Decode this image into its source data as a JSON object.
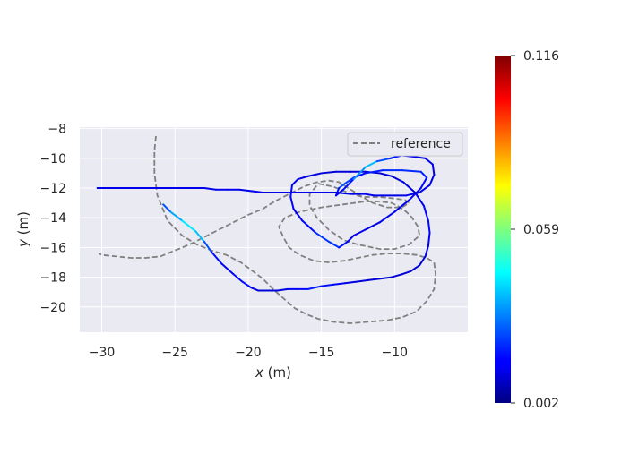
{
  "chart_data": {
    "type": "line",
    "title": "",
    "xlabel": {
      "var": "x",
      "unit": " (m)"
    },
    "ylabel": {
      "var": "y",
      "unit": " (m)"
    },
    "xlim": [
      -31.5,
      -5.0
    ],
    "ylim": [
      -21.7,
      -7.9
    ],
    "xticks": [
      -30,
      -25,
      -20,
      -15,
      -10
    ],
    "yticks": [
      -8,
      -10,
      -12,
      -14,
      -16,
      -18,
      -20
    ],
    "grid": true,
    "legend": {
      "placement": "top-right",
      "entries": [
        "reference"
      ]
    },
    "colorbar": {
      "colormap": "jet",
      "min": 0.002,
      "max": 0.116,
      "tick_labels": [
        "0.116",
        "0.059",
        "0.002"
      ],
      "tick_values": [
        0.116,
        0.059,
        0.002
      ]
    },
    "series": [
      {
        "name": "reference",
        "style": "dashed",
        "color": "#808080",
        "x": [
          -26.3,
          -26.4,
          -26.4,
          -26.2,
          -25.5,
          -24.5,
          -23.5,
          -22.5,
          -21.5,
          -20.5,
          -19.8,
          -19.0,
          -18.3,
          -17.5,
          -16.8,
          -16.0,
          -15.2,
          -14.2,
          -13.0,
          -11.8,
          -10.5,
          -9.5,
          -8.5,
          -7.8,
          -7.3,
          -7.2,
          -7.3,
          -7.8,
          -8.5,
          -9.5,
          -10.5,
          -11.5,
          -12.5,
          -13.5,
          -14.5,
          -15.5,
          -16.5,
          -17.2,
          -17.6,
          -17.9,
          -17.5,
          -16.5,
          -15.0,
          -13.5,
          -12.0,
          -11.0,
          -10.2,
          -9.6,
          -9.2,
          -8.8,
          -8.4,
          -8.3,
          -9.0,
          -10.0,
          -11.0,
          -12.5,
          -13.5,
          -14.5,
          -15.3,
          -15.8,
          -15.8,
          -15.2,
          -14.2,
          -13.2,
          -12.2,
          -11.0,
          -10.0,
          -9.3,
          -9.0,
          -9.5,
          -10.5,
          -11.5,
          -12.2,
          -13.0,
          -13.8,
          -14.5,
          -15.3,
          -16.2,
          -17.0,
          -17.6,
          -18.2,
          -19.0,
          -20.0,
          -21.0,
          -22.0,
          -23.0,
          -24.0,
          -25.0,
          -26.0,
          -27.0,
          -28.0,
          -29.0,
          -30.0,
          -30.2
        ],
        "y": [
          -8.5,
          -9.5,
          -11.0,
          -12.5,
          -14.2,
          -15.2,
          -15.8,
          -16.2,
          -16.5,
          -17.0,
          -17.5,
          -18.1,
          -18.8,
          -19.5,
          -20.1,
          -20.5,
          -20.8,
          -21.0,
          -21.1,
          -21.0,
          -20.9,
          -20.7,
          -20.3,
          -19.6,
          -18.8,
          -17.8,
          -17.0,
          -16.7,
          -16.5,
          -16.4,
          -16.4,
          -16.5,
          -16.7,
          -16.9,
          -17.0,
          -16.9,
          -16.5,
          -16.0,
          -15.3,
          -14.6,
          -14.0,
          -13.6,
          -13.3,
          -13.1,
          -12.9,
          -12.9,
          -13.0,
          -13.3,
          -13.6,
          -14.0,
          -14.6,
          -15.2,
          -15.8,
          -16.1,
          -16.1,
          -15.8,
          -15.5,
          -14.8,
          -14.0,
          -13.2,
          -12.4,
          -11.7,
          -11.9,
          -12.3,
          -12.6,
          -12.6,
          -12.7,
          -12.8,
          -13.0,
          -13.3,
          -13.3,
          -13.0,
          -12.6,
          -12.1,
          -11.6,
          -11.5,
          -11.6,
          -11.9,
          -12.3,
          -12.6,
          -12.9,
          -13.4,
          -13.8,
          -14.3,
          -14.8,
          -15.3,
          -15.8,
          -16.2,
          -16.6,
          -16.7,
          -16.7,
          -16.6,
          -16.5,
          -16.4
        ]
      },
      {
        "name": "",
        "style": "solid",
        "colored_by": "error",
        "x": [
          -25.8,
          -25.3,
          -24.5,
          -23.6,
          -23.0,
          -22.5,
          -21.8,
          -21.0,
          -20.4,
          -19.8,
          -19.3,
          -18.7,
          -18.0,
          -17.3,
          -16.6,
          -15.9,
          -15.0,
          -14.2,
          -13.4,
          -12.6,
          -11.8,
          -11.0,
          -10.2,
          -9.5,
          -8.9,
          -8.3,
          -7.9,
          -7.7,
          -7.6,
          -7.7,
          -8.0,
          -8.6,
          -9.4,
          -10.2,
          -11.0,
          -12.0,
          -13.0,
          -14.0,
          -15.0,
          -15.9,
          -16.6,
          -17.0,
          -17.1,
          -16.9,
          -16.3,
          -15.4,
          -14.5,
          -13.8,
          -13.2,
          -12.8,
          -12.0,
          -11.0,
          -10.0,
          -9.0,
          -8.2,
          -7.8,
          -8.2,
          -9.5,
          -10.8,
          -12.0,
          -12.8,
          -13.4,
          -13.8,
          -14.0,
          -13.5,
          -12.8,
          -12.0,
          -11.2,
          -10.3,
          -9.5,
          -8.6,
          -7.9,
          -7.4,
          -7.3,
          -7.6,
          -8.3,
          -9.2,
          -10.0,
          -10.8,
          -11.4,
          -12.0,
          -13.0,
          -14.0,
          -15.0,
          -16.0,
          -17.0,
          -18.0,
          -19.0,
          -19.8,
          -20.6,
          -21.4,
          -22.2,
          -23.0,
          -24.0,
          -25.0,
          -26.0,
          -27.0,
          -28.0,
          -29.0,
          -30.3
        ],
        "y": [
          -13.1,
          -13.6,
          -14.2,
          -14.9,
          -15.6,
          -16.3,
          -17.1,
          -17.8,
          -18.3,
          -18.7,
          -18.9,
          -18.9,
          -18.9,
          -18.8,
          -18.8,
          -18.8,
          -18.6,
          -18.5,
          -18.4,
          -18.3,
          -18.2,
          -18.1,
          -18.0,
          -17.8,
          -17.6,
          -17.2,
          -16.6,
          -15.9,
          -15.0,
          -14.2,
          -13.2,
          -12.3,
          -11.6,
          -11.2,
          -11.0,
          -10.9,
          -10.9,
          -10.9,
          -11.0,
          -11.2,
          -11.4,
          -11.8,
          -12.6,
          -13.4,
          -14.2,
          -15.0,
          -15.6,
          -16.0,
          -15.6,
          -15.2,
          -14.8,
          -14.3,
          -13.6,
          -12.8,
          -12.0,
          -11.3,
          -10.9,
          -10.8,
          -10.8,
          -11.0,
          -11.3,
          -11.7,
          -12.0,
          -12.5,
          -12.1,
          -11.4,
          -10.6,
          -10.2,
          -10.0,
          -9.8,
          -9.9,
          -10.0,
          -10.4,
          -11.1,
          -11.8,
          -12.3,
          -12.5,
          -12.5,
          -12.5,
          -12.5,
          -12.4,
          -12.4,
          -12.3,
          -12.3,
          -12.3,
          -12.3,
          -12.3,
          -12.3,
          -12.2,
          -12.1,
          -12.1,
          -12.1,
          -12.0,
          -12.0,
          -12.0,
          -12.0,
          -12.0,
          -12.0,
          -12.0,
          -12.0
        ],
        "error": [
          0.02,
          0.03,
          0.04,
          0.045,
          0.03,
          0.02,
          0.015,
          0.015,
          0.02,
          0.015,
          0.012,
          0.012,
          0.012,
          0.014,
          0.016,
          0.018,
          0.02,
          0.016,
          0.014,
          0.012,
          0.012,
          0.012,
          0.012,
          0.012,
          0.012,
          0.012,
          0.012,
          0.014,
          0.016,
          0.018,
          0.016,
          0.014,
          0.012,
          0.012,
          0.012,
          0.012,
          0.012,
          0.012,
          0.012,
          0.012,
          0.014,
          0.016,
          0.018,
          0.016,
          0.014,
          0.02,
          0.024,
          0.02,
          0.016,
          0.014,
          0.014,
          0.014,
          0.014,
          0.014,
          0.016,
          0.018,
          0.02,
          0.022,
          0.02,
          0.018,
          0.016,
          0.03,
          0.02,
          0.014,
          0.016,
          0.02,
          0.045,
          0.03,
          0.02,
          0.016,
          0.014,
          0.014,
          0.014,
          0.014,
          0.014,
          0.014,
          0.014,
          0.014,
          0.014,
          0.014,
          0.014,
          0.014,
          0.014,
          0.014,
          0.014,
          0.014,
          0.014,
          0.014,
          0.014,
          0.014,
          0.014,
          0.014,
          0.014,
          0.014,
          0.014,
          0.014,
          0.014,
          0.014,
          0.014,
          0.014
        ]
      }
    ]
  }
}
